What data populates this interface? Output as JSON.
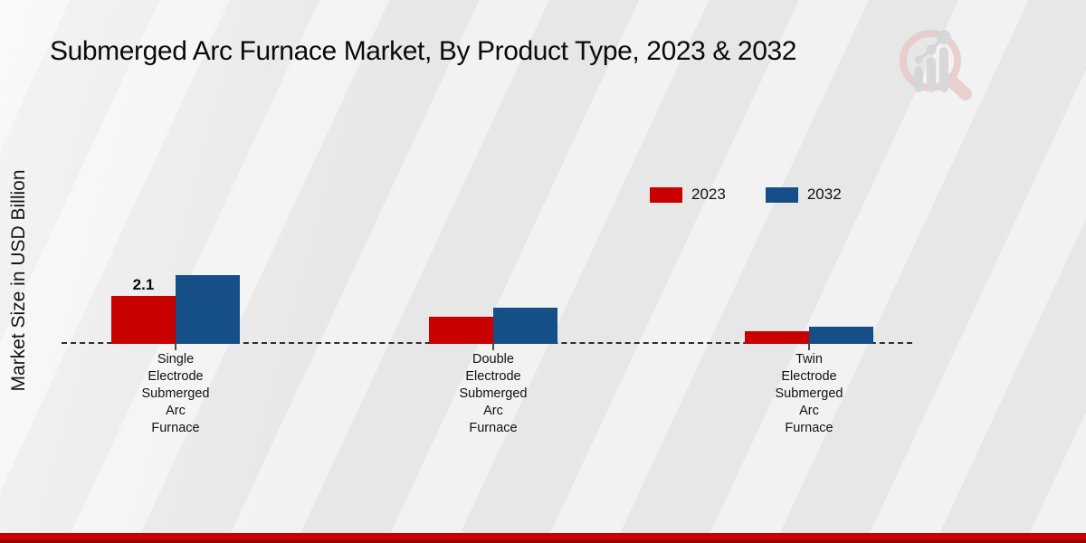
{
  "title": "Submerged Arc Furnace Market, By Product Type, 2023 & 2032",
  "y_axis_label": "Market Size in USD Billion",
  "colors": {
    "series_2023": "#c90000",
    "series_2032": "#164f88",
    "footer_band": "#c60000",
    "background": "#ededed",
    "baseline": "#2e2e2e"
  },
  "legend": {
    "position": "upper-right",
    "items": [
      {
        "label": "2023",
        "color": "#c90000"
      },
      {
        "label": "2032",
        "color": "#164f88"
      }
    ]
  },
  "logo_icon": "magnifier-bar-chart-logo",
  "chart_data": {
    "type": "bar",
    "categories": [
      "Single Electrode Submerged Arc Furnace",
      "Double Electrode Submerged Arc Furnace",
      "Twin Electrode Submerged Arc Furnace"
    ],
    "series": [
      {
        "name": "2023",
        "color": "#c90000",
        "values": [
          2.1,
          1.2,
          0.55
        ]
      },
      {
        "name": "2032",
        "color": "#164f88",
        "values": [
          3.0,
          1.6,
          0.75
        ]
      }
    ],
    "title": "Submerged Arc Furnace Market, By Product Type, 2023 & 2032",
    "xlabel": "",
    "ylabel": "Market Size in USD Billion",
    "ylim": [
      0,
      3.5
    ],
    "grid": false,
    "baseline_style": "dashed",
    "y_axis_ticks_visible": false,
    "annotations": [
      {
        "series": "2023",
        "category_index": 0,
        "text": "2.1"
      }
    ]
  }
}
